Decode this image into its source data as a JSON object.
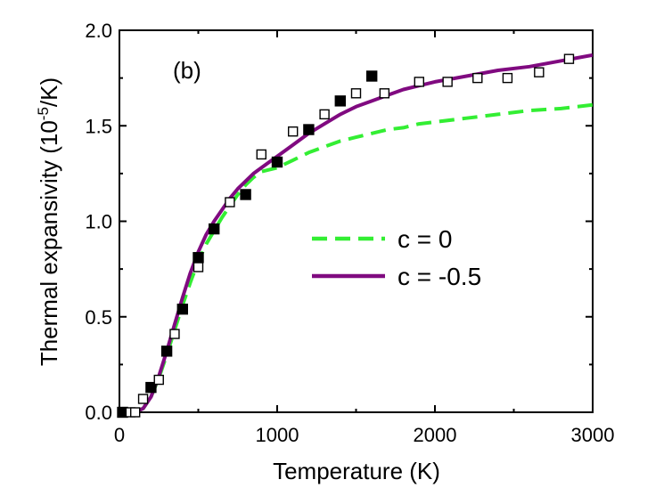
{
  "chart_data": {
    "type": "line",
    "panel_label": "(b)",
    "xlabel": "Temperature (K)",
    "ylabel": {
      "base": "Thermal expansivity (10",
      "sup": "-5",
      "tail": "/K)"
    },
    "xlim": [
      0,
      3000
    ],
    "ylim": [
      0,
      2.0
    ],
    "xticks": [
      0,
      1000,
      2000,
      3000
    ],
    "xtick_labels": [
      "0",
      "1000",
      "2000",
      "3000"
    ],
    "yticks": [
      0.0,
      0.5,
      1.0,
      1.5,
      2.0
    ],
    "ytick_labels": [
      "0.0",
      "0.5",
      "1.0",
      "1.5",
      "2.0"
    ],
    "grid": false,
    "legend_position": "center-right",
    "series": [
      {
        "name": "c = 0",
        "style": "dashed",
        "color": "#33ee33",
        "x": [
          100,
          150,
          200,
          250,
          300,
          350,
          400,
          450,
          500,
          550,
          600,
          650,
          700,
          750,
          800,
          850,
          900,
          950,
          1000,
          1100,
          1200,
          1300,
          1400,
          1500,
          1600,
          1700,
          1800,
          1900,
          2000,
          2200,
          2400,
          2600,
          2800,
          3000
        ],
        "y": [
          0.0,
          0.02,
          0.08,
          0.18,
          0.3,
          0.43,
          0.56,
          0.68,
          0.79,
          0.88,
          0.95,
          1.02,
          1.08,
          1.14,
          1.19,
          1.23,
          1.26,
          1.27,
          1.28,
          1.32,
          1.36,
          1.39,
          1.42,
          1.44,
          1.46,
          1.48,
          1.49,
          1.51,
          1.52,
          1.54,
          1.56,
          1.58,
          1.59,
          1.61
        ]
      },
      {
        "name": "c = -0.5",
        "style": "solid",
        "color": "#800a80",
        "x": [
          100,
          150,
          200,
          250,
          300,
          350,
          400,
          450,
          500,
          550,
          600,
          650,
          700,
          750,
          800,
          850,
          900,
          950,
          1000,
          1100,
          1200,
          1300,
          1400,
          1500,
          1600,
          1700,
          1800,
          1900,
          2000,
          2200,
          2400,
          2600,
          2800,
          3000
        ],
        "y": [
          0.0,
          0.02,
          0.08,
          0.19,
          0.32,
          0.46,
          0.6,
          0.73,
          0.84,
          0.93,
          1.0,
          1.06,
          1.12,
          1.17,
          1.21,
          1.25,
          1.28,
          1.31,
          1.34,
          1.4,
          1.46,
          1.51,
          1.56,
          1.6,
          1.63,
          1.66,
          1.69,
          1.71,
          1.73,
          1.76,
          1.79,
          1.81,
          1.84,
          1.87
        ]
      }
    ],
    "markers": [
      {
        "fill": "filled",
        "x": [
          20,
          200,
          300,
          400,
          500,
          600,
          800,
          1000,
          1200,
          1400,
          1600
        ],
        "y": [
          0.0,
          0.13,
          0.32,
          0.54,
          0.81,
          0.96,
          1.14,
          1.31,
          1.48,
          1.63,
          1.76
        ]
      },
      {
        "fill": "open",
        "x": [
          70,
          100,
          150,
          250,
          350,
          500,
          700,
          900,
          1100,
          1300,
          1500,
          1680,
          1900,
          2080,
          2270,
          2460,
          2660,
          2850
        ],
        "y": [
          0.0,
          0.0,
          0.07,
          0.17,
          0.41,
          0.76,
          1.1,
          1.35,
          1.47,
          1.56,
          1.67,
          1.67,
          1.73,
          1.73,
          1.75,
          1.75,
          1.78,
          1.85
        ]
      }
    ]
  }
}
